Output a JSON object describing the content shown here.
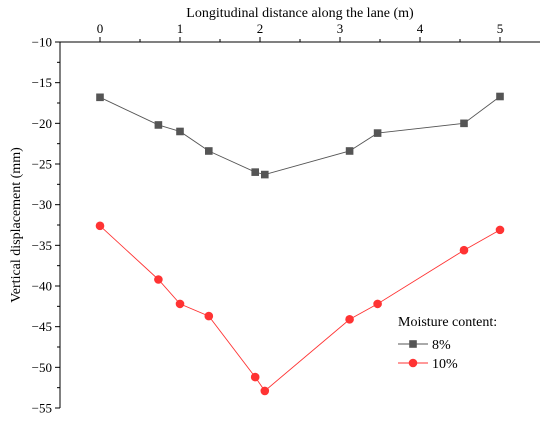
{
  "chart_data": {
    "type": "line",
    "xlabel": "Longitudinal distance along the lane (m)",
    "ylabel": "Vertical displacement (mm)",
    "xlim": [
      -0.5,
      5.5
    ],
    "ylim": [
      -55,
      -10
    ],
    "x_ticks": [
      0,
      1,
      2,
      3,
      4,
      5
    ],
    "y_ticks": [
      -10,
      -15,
      -20,
      -25,
      -30,
      -35,
      -40,
      -45,
      -50,
      -55
    ],
    "x_axis_position": "top",
    "grid": false,
    "legend_title": "Moisture content:",
    "legend_position": "bottom-right",
    "series": [
      {
        "name": "8%",
        "color": "#555555",
        "marker": "square",
        "points": [
          {
            "x": 0,
            "y": -16.8
          },
          {
            "x": 0.73,
            "y": -20.2
          },
          {
            "x": 1.0,
            "y": -21.0
          },
          {
            "x": 1.36,
            "y": -23.4
          },
          {
            "x": 1.94,
            "y": -26.0
          },
          {
            "x": 2.06,
            "y": -26.3
          },
          {
            "x": 3.12,
            "y": -23.4
          },
          {
            "x": 3.47,
            "y": -21.2
          },
          {
            "x": 4.55,
            "y": -20.0
          },
          {
            "x": 5.0,
            "y": -16.7
          }
        ]
      },
      {
        "name": "10%",
        "color": "#ff3333",
        "marker": "circle",
        "points": [
          {
            "x": 0,
            "y": -32.6
          },
          {
            "x": 0.73,
            "y": -39.2
          },
          {
            "x": 1.0,
            "y": -42.2
          },
          {
            "x": 1.36,
            "y": -43.7
          },
          {
            "x": 1.94,
            "y": -51.2
          },
          {
            "x": 2.06,
            "y": -52.9
          },
          {
            "x": 3.12,
            "y": -44.1
          },
          {
            "x": 3.47,
            "y": -42.2
          },
          {
            "x": 4.55,
            "y": -35.6
          },
          {
            "x": 5.0,
            "y": -33.1
          }
        ]
      }
    ]
  }
}
